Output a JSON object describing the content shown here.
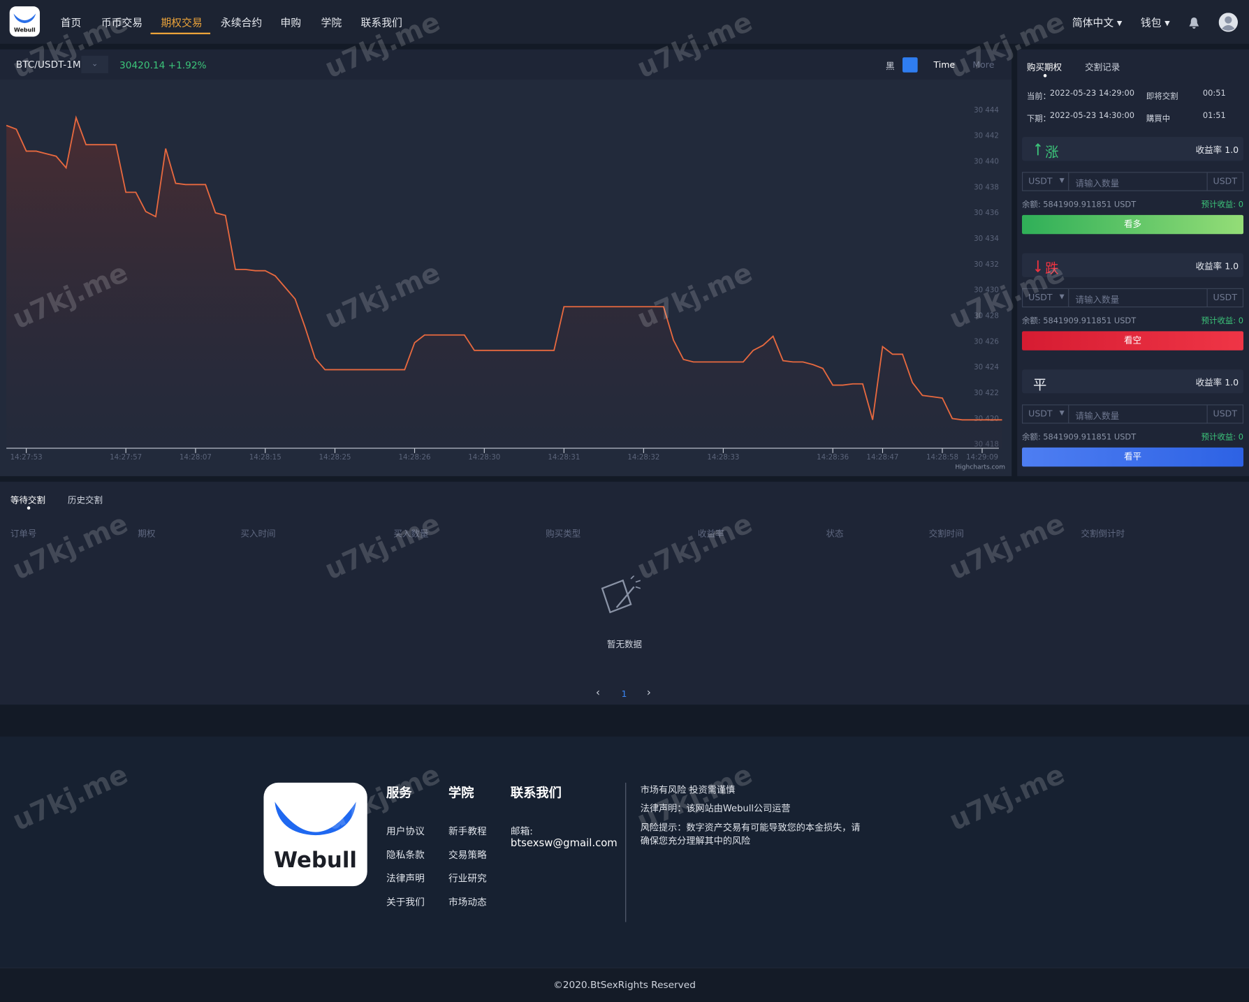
{
  "logo": "Webull",
  "watermark": "u7kj.me",
  "header": {
    "nav": [
      "首页",
      "币币交易",
      "期权交易",
      "永续合约",
      "申购",
      "学院",
      "联系我们"
    ],
    "language": "简体中文",
    "wallet": "钱包"
  },
  "ticker": {
    "symbol": "BTC/USDT-1M",
    "price": "30420.14",
    "change": "+1.92%",
    "theme": "黑",
    "time": "Time",
    "more": "More"
  },
  "chart_data": {
    "type": "line",
    "color": "#e8693f",
    "grid": false,
    "credit": "Highcharts.com",
    "ylim": [
      30418,
      30446
    ],
    "yticks": [
      {
        "value": 30418,
        "label": "30 418"
      },
      {
        "value": 30420,
        "label": "30 420"
      },
      {
        "value": 30422,
        "label": "30 422"
      },
      {
        "value": 30424,
        "label": "30 424"
      },
      {
        "value": 30426,
        "label": "30 426"
      },
      {
        "value": 30428,
        "label": "30 428"
      },
      {
        "value": 30430,
        "label": "30 430"
      },
      {
        "value": 30432,
        "label": "30 432"
      },
      {
        "value": 30434,
        "label": "30 434"
      },
      {
        "value": 30436,
        "label": "30 436"
      },
      {
        "value": 30438,
        "label": "30 438"
      },
      {
        "value": 30440,
        "label": "30 440"
      },
      {
        "value": 30442,
        "label": "30 442"
      },
      {
        "value": 30444,
        "label": "30 444"
      }
    ],
    "categories": [
      null,
      null,
      "14:27:53",
      null,
      null,
      null,
      null,
      null,
      null,
      null,
      null,
      null,
      "14:27:57",
      null,
      null,
      null,
      null,
      null,
      null,
      "14:28:07",
      null,
      null,
      null,
      null,
      null,
      null,
      "14:28:15",
      null,
      null,
      null,
      null,
      null,
      null,
      "14:28:25",
      null,
      null,
      null,
      null,
      null,
      null,
      null,
      "14:28:26",
      null,
      null,
      null,
      null,
      null,
      null,
      "14:28:30",
      null,
      null,
      null,
      null,
      null,
      null,
      null,
      "14:28:31",
      null,
      null,
      null,
      null,
      null,
      null,
      null,
      "14:28:32",
      null,
      null,
      null,
      null,
      null,
      null,
      null,
      "14:28:33",
      null,
      null,
      null,
      null,
      null,
      null,
      null,
      null,
      null,
      null,
      "14:28:36",
      null,
      null,
      null,
      null,
      "14:28:47",
      null,
      null,
      null,
      null,
      null,
      "14:28:58",
      null,
      null,
      null,
      "14:29:09",
      null,
      null
    ],
    "values": [
      30442.8,
      30442.5,
      30440.8,
      30440.8,
      30440.6,
      30440.4,
      30439.5,
      30443.4,
      30441.3,
      30441.3,
      30441.3,
      30441.3,
      30437.6,
      30437.6,
      30436.1,
      30435.7,
      30441.0,
      30438.3,
      30438.2,
      30438.2,
      30438.2,
      30436.0,
      30435.8,
      30431.6,
      30431.6,
      30431.5,
      30431.5,
      30431.1,
      30430.2,
      30429.3,
      30427.1,
      30424.7,
      30423.8,
      30423.8,
      30423.8,
      30423.8,
      30423.8,
      30423.8,
      30423.8,
      30423.8,
      30423.8,
      30425.9,
      30426.5,
      30426.5,
      30426.5,
      30426.5,
      30426.5,
      30425.3,
      30425.3,
      30425.3,
      30425.3,
      30425.3,
      30425.3,
      30425.3,
      30425.3,
      30425.3,
      30428.7,
      30428.7,
      30428.7,
      30428.7,
      30428.7,
      30428.7,
      30428.7,
      30428.7,
      30428.7,
      30428.7,
      30428.7,
      30426.1,
      30424.6,
      30424.4,
      30424.4,
      30424.4,
      30424.4,
      30424.4,
      30424.4,
      30425.3,
      30425.7,
      30426.4,
      30424.5,
      30424.4,
      30424.4,
      30424.2,
      30423.9,
      30422.6,
      30422.6,
      30422.7,
      30422.7,
      30419.9,
      30425.6,
      30425.0,
      30425.0,
      30422.8,
      30421.8,
      30421.7,
      30421.6,
      30420.0,
      30419.9,
      30419.9,
      30419.9,
      30419.9,
      30419.9
    ]
  },
  "trade": {
    "tabs": [
      "购买期权",
      "交割记录"
    ],
    "periods": [
      {
        "label": "当前：",
        "time": "2022-05-23 14:29:00",
        "status": "即将交割",
        "countdown": "00:51"
      },
      {
        "label": "下期：",
        "time": "2022-05-23 14:30:00",
        "status": "購買中",
        "countdown": "01:51"
      }
    ],
    "options": [
      {
        "direction": "涨",
        "yield": "收益率 1.0",
        "currency": "USDT",
        "placeholder": "请输入数量",
        "unit": "USDT",
        "balance": "余额: 5841909.911851 USDT",
        "expected": "预计收益: 0",
        "button": "看多"
      },
      {
        "direction": "跌",
        "yield": "收益率 1.0",
        "currency": "USDT",
        "placeholder": "请输入数量",
        "unit": "USDT",
        "balance": "余额: 5841909.911851 USDT",
        "expected": "预计收益: 0",
        "button": "看空"
      },
      {
        "direction": "平",
        "yield": "收益率 1.0",
        "currency": "USDT",
        "placeholder": "请输入数量",
        "unit": "USDT",
        "balance": "余额: 5841909.911851 USDT",
        "expected": "预计收益: 0",
        "button": "看平"
      }
    ]
  },
  "orders": {
    "tabs": [
      "等待交割",
      "历史交割"
    ],
    "columns": [
      "订单号",
      "期权",
      "买入时间",
      "买入数量",
      "购买类型",
      "收益率",
      "状态",
      "交割时间",
      "交割倒计时"
    ],
    "empty": "暂无数据",
    "page": "1"
  },
  "footer": {
    "columns": [
      {
        "title": "服务",
        "links": [
          "用户协议",
          "隐私条款",
          "法律声明",
          "关于我们"
        ]
      },
      {
        "title": "学院",
        "links": [
          "新手教程",
          "交易策略",
          "行业研究",
          "市场动态"
        ]
      }
    ],
    "contact": {
      "title": "联系我们",
      "email_label": "邮箱:",
      "email": "btsexsw@gmail.com"
    },
    "notices": [
      "市场有风险 投资需谨慎",
      "法律声明：该网站由Webull公司运营",
      "风险提示：数字资产交易有可能导致您的本金损失，请确保您充分理解其中的风险"
    ],
    "copyright": "©2020.BtSexRights Reserved"
  }
}
